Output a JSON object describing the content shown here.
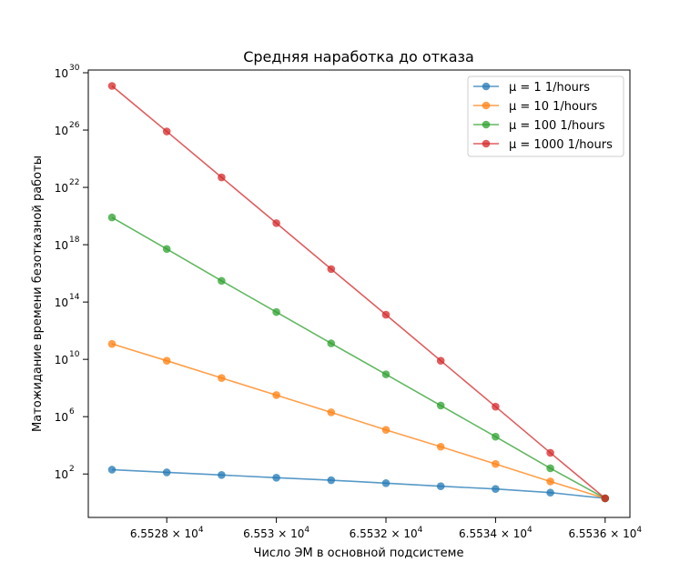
{
  "chart_data": {
    "type": "line",
    "title": "Средняя наработка до отказа",
    "xlabel": "Число ЭМ в основной подсистеме",
    "ylabel": "Матожидание времени безотказной работы",
    "yscale": "log",
    "grid": false,
    "legend_position": "top-right",
    "x_ticks": [
      {
        "value": 65528,
        "mantissa": "6.5528",
        "base": "10",
        "exp": "4"
      },
      {
        "value": 65530,
        "mantissa": "6.553",
        "base": "10",
        "exp": "4"
      },
      {
        "value": 65532,
        "mantissa": "6.5532",
        "base": "10",
        "exp": "4"
      },
      {
        "value": 65534,
        "mantissa": "6.5534",
        "base": "10",
        "exp": "4"
      },
      {
        "value": 65536,
        "mantissa": "6.5536",
        "base": "10",
        "exp": "4"
      }
    ],
    "y_ticks": [
      {
        "exp": 2,
        "base": "10",
        "exp_label": "2"
      },
      {
        "exp": 6,
        "base": "10",
        "exp_label": "6"
      },
      {
        "exp": 10,
        "base": "10",
        "exp_label": "10"
      },
      {
        "exp": 14,
        "base": "10",
        "exp_label": "14"
      },
      {
        "exp": 18,
        "base": "10",
        "exp_label": "18"
      },
      {
        "exp": 22,
        "base": "10",
        "exp_label": "22"
      },
      {
        "exp": 26,
        "base": "10",
        "exp_label": "26"
      },
      {
        "exp": 30,
        "base": "10",
        "exp_label": "30"
      }
    ],
    "x": [
      65527,
      65528,
      65529,
      65530,
      65531,
      65532,
      65533,
      65534,
      65535,
      65536
    ],
    "series": [
      {
        "name": "μ = 1 1/hours",
        "color": "#1f77b4",
        "values": [
          200,
          130,
          85,
          55,
          37,
          23,
          14,
          9,
          5,
          2
        ]
      },
      {
        "name": "μ = 10 1/hours",
        "color": "#ff7f0e",
        "values": [
          120000000000.0,
          8000000000.0,
          500000000.0,
          32000000.0,
          2000000.0,
          120000.0,
          8000.0,
          500,
          30,
          2
        ]
      },
      {
        "name": "μ = 100 1/hours",
        "color": "#2ca02c",
        "values": [
          8e+19,
          5e+17,
          3000000000000000.0,
          20000000000000.0,
          130000000000.0,
          900000000.0,
          6000000.0,
          40000.0,
          250,
          2
        ]
      },
      {
        "name": "μ = 1000 1/hours",
        "color": "#d62728",
        "values": [
          1.2e+29,
          8e+25,
          5e+22,
          3.2e+19,
          2e+16,
          13000000000000.0,
          8000000000.0,
          5000000.0,
          3000,
          2
        ]
      }
    ]
  }
}
